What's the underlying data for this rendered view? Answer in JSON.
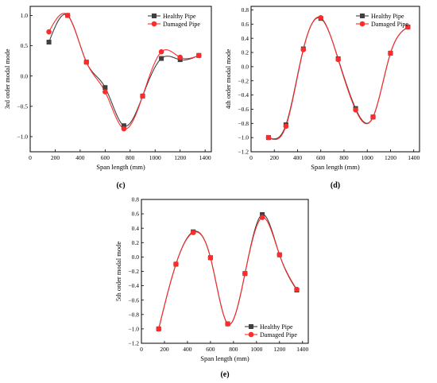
{
  "chart_data": [
    {
      "type": "line",
      "panel_label": "(c)",
      "ylabel": "3rd order modal mode",
      "xlabel": "Span length (mm)",
      "xlim": [
        0,
        1450
      ],
      "ylim": [
        -1.25,
        1.15
      ],
      "xticks": [
        0,
        200,
        400,
        600,
        800,
        1000,
        1200,
        1400
      ],
      "yticks": [
        -1.0,
        -0.5,
        0.0,
        0.5,
        1.0
      ],
      "ytick_labels": [
        "−1.0",
        "−0.5",
        "0.0",
        "0.5",
        "1.0"
      ],
      "legend_position": "top-right",
      "series": [
        {
          "name": "Healthy Pipe",
          "color": "#404040",
          "marker": "square",
          "x": [
            150,
            300,
            450,
            600,
            750,
            900,
            1050,
            1200,
            1350
          ],
          "y": [
            0.56,
            1.0,
            0.23,
            -0.19,
            -0.82,
            -0.33,
            0.29,
            0.27,
            0.34
          ]
        },
        {
          "name": "Damaged Pipe",
          "color": "#ff2a2a",
          "marker": "circle",
          "x": [
            150,
            300,
            450,
            600,
            750,
            900,
            1050,
            1200,
            1350
          ],
          "y": [
            0.73,
            1.0,
            0.23,
            -0.26,
            -0.87,
            -0.33,
            0.4,
            0.31,
            0.34
          ]
        }
      ]
    },
    {
      "type": "line",
      "panel_label": "(d)",
      "ylabel": "4th order modal mode",
      "xlabel": "Span length (mm)",
      "xlim": [
        0,
        1450
      ],
      "ylim": [
        -1.2,
        0.85
      ],
      "xticks": [
        0,
        200,
        400,
        600,
        800,
        1000,
        1200,
        1400
      ],
      "yticks": [
        -1.2,
        -1.0,
        -0.8,
        -0.6,
        -0.4,
        -0.2,
        0.0,
        0.2,
        0.4,
        0.6,
        0.8
      ],
      "ytick_labels": [
        "−1.2",
        "−1.0",
        "−0.8",
        "−0.6",
        "−0.4",
        "−0.2",
        "0.0",
        "0.2",
        "0.4",
        "0.6",
        "0.8"
      ],
      "legend_position": "top-right",
      "series": [
        {
          "name": "Healthy Pipe",
          "color": "#404040",
          "marker": "square",
          "x": [
            150,
            300,
            450,
            600,
            750,
            900,
            1050,
            1200,
            1350
          ],
          "y": [
            -1.0,
            -0.82,
            0.25,
            0.68,
            0.11,
            -0.59,
            -0.71,
            0.19,
            0.56
          ]
        },
        {
          "name": "Damaged Pipe",
          "color": "#ff2a2a",
          "marker": "circle",
          "x": [
            150,
            300,
            450,
            600,
            750,
            900,
            1050,
            1200,
            1350
          ],
          "y": [
            -1.0,
            -0.84,
            0.24,
            0.69,
            0.1,
            -0.61,
            -0.71,
            0.19,
            0.56
          ]
        }
      ]
    },
    {
      "type": "line",
      "panel_label": "(e)",
      "ylabel": "5th order modal mode",
      "xlabel": "Span length (mm)",
      "xlim": [
        0,
        1450
      ],
      "ylim": [
        -1.2,
        0.8
      ],
      "xticks": [
        0,
        200,
        400,
        600,
        800,
        1000,
        1200,
        1400
      ],
      "yticks": [
        -1.2,
        -1.0,
        -0.8,
        -0.6,
        -0.4,
        -0.2,
        0.0,
        0.2,
        0.4,
        0.6,
        0.8
      ],
      "ytick_labels": [
        "−1.2",
        "−1.0",
        "−0.8",
        "−0.6",
        "−0.4",
        "−0.2",
        "0.0",
        "0.2",
        "0.4",
        "0.6",
        "0.8"
      ],
      "legend_position": "bottom-right",
      "series": [
        {
          "name": "Healthy Pipe",
          "color": "#404040",
          "marker": "square",
          "x": [
            150,
            300,
            450,
            600,
            750,
            900,
            1050,
            1200,
            1350
          ],
          "y": [
            -1.0,
            -0.1,
            0.35,
            -0.01,
            -0.93,
            -0.23,
            0.59,
            0.03,
            -0.46
          ]
        },
        {
          "name": "Damaged Pipe",
          "color": "#ff2a2a",
          "marker": "circle",
          "x": [
            150,
            300,
            450,
            600,
            750,
            900,
            1050,
            1200,
            1350
          ],
          "y": [
            -1.0,
            -0.1,
            0.34,
            -0.01,
            -0.93,
            -0.23,
            0.55,
            0.03,
            -0.45
          ]
        }
      ]
    }
  ]
}
